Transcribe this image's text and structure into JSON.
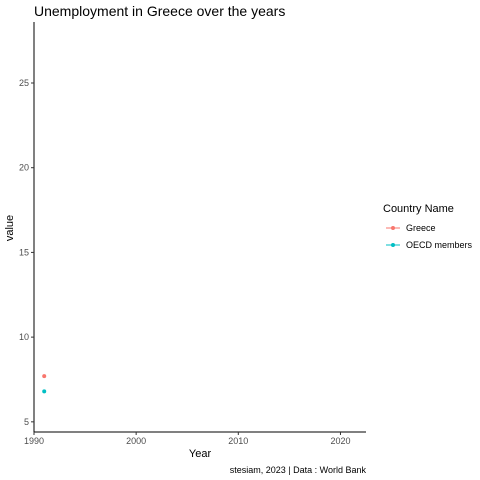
{
  "chart_data": {
    "type": "line",
    "title": "Unemployment in Greece over the years",
    "xlabel": "Year",
    "ylabel": "value",
    "caption": "stesiam, 2023 | Data : World Bank",
    "xlim": [
      1990,
      2022.5
    ],
    "ylim": [
      4.4,
      28.6
    ],
    "x_ticks": [
      1990,
      2000,
      2010,
      2020
    ],
    "y_ticks": [
      5,
      10,
      15,
      20,
      25
    ],
    "grid": false,
    "legend": {
      "title": "Country Name",
      "position": "right"
    },
    "series": [
      {
        "name": "Greece",
        "color": "#F8766D",
        "points": [
          [
            1991,
            7.7
          ]
        ]
      },
      {
        "name": "OECD members",
        "color": "#00BFC4",
        "points": [
          [
            1991,
            6.8
          ]
        ]
      }
    ]
  }
}
